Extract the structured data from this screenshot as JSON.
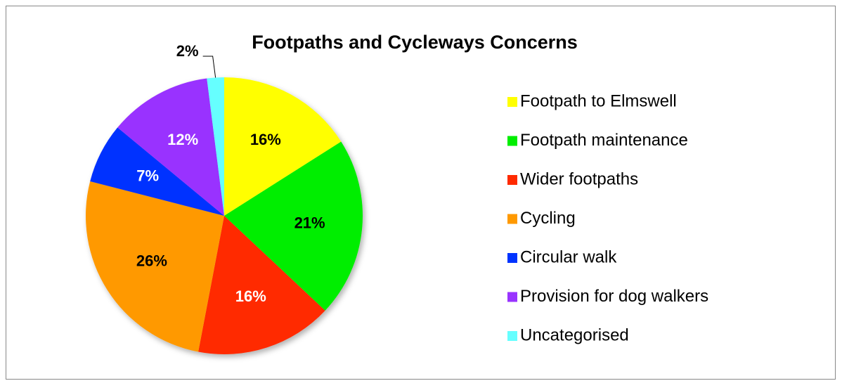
{
  "chart_data": {
    "type": "pie",
    "title": "Footpaths and Cycleways Concerns",
    "categories": [
      "Footpath to Elmswell",
      "Footpath maintenance",
      "Wider footpaths",
      "Cycling",
      "Circular walk",
      "Provision for dog walkers",
      "Uncategorised"
    ],
    "values": [
      16,
      21,
      16,
      26,
      7,
      12,
      2
    ],
    "value_labels": [
      "16%",
      "21%",
      "16%",
      "26%",
      "7%",
      "12%",
      "2%"
    ],
    "colors": [
      "#ffff00",
      "#00ee00",
      "#ff2a00",
      "#ff9900",
      "#0033ff",
      "#9933ff",
      "#66ffff"
    ],
    "legend": "right"
  }
}
